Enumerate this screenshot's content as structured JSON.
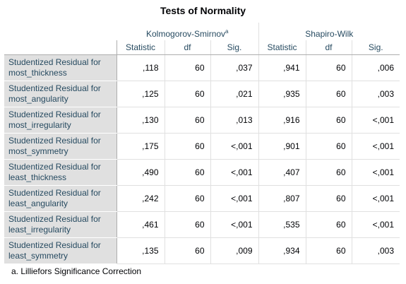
{
  "title": "Tests of Normality",
  "groups": {
    "ks": {
      "label": "Kolmogorov-Smirnov",
      "footnote_mark": "a"
    },
    "sw": {
      "label": "Shapiro-Wilk"
    }
  },
  "columns": [
    "Statistic",
    "df",
    "Sig.",
    "Statistic",
    "df",
    "Sig."
  ],
  "rows": [
    {
      "label1": "Studentized Residual for",
      "label2": "most_thickness",
      "values": [
        ",118",
        "60",
        ",037",
        ",941",
        "60",
        ",006"
      ]
    },
    {
      "label1": "Studentized Residual for",
      "label2": "most_angularity",
      "values": [
        ",125",
        "60",
        ",021",
        ",935",
        "60",
        ",003"
      ]
    },
    {
      "label1": "Studentized Residual for",
      "label2": "most_irregularity",
      "values": [
        ",130",
        "60",
        ",013",
        ",916",
        "60",
        "<,001"
      ]
    },
    {
      "label1": "Studentized Residual for",
      "label2": "most_symmetry",
      "values": [
        ",175",
        "60",
        "<,001",
        ",901",
        "60",
        "<,001"
      ]
    },
    {
      "label1": "Studentized Residual for",
      "label2": "least_thickness",
      "values": [
        ",490",
        "60",
        "<,001",
        ",407",
        "60",
        "<,001"
      ]
    },
    {
      "label1": "Studentized Residual for",
      "label2": "least_angularity",
      "values": [
        ",242",
        "60",
        "<,001",
        ",807",
        "60",
        "<,001"
      ]
    },
    {
      "label1": "Studentized Residual for",
      "label2": "least_irregularity",
      "values": [
        ",461",
        "60",
        "<,001",
        ",535",
        "60",
        "<,001"
      ]
    },
    {
      "label1": "Studentized Residual for",
      "label2": "least_symmetry",
      "values": [
        ",135",
        "60",
        ",009",
        ",934",
        "60",
        ",003"
      ]
    }
  ],
  "footnote": "a. Lilliefors Significance Correction"
}
